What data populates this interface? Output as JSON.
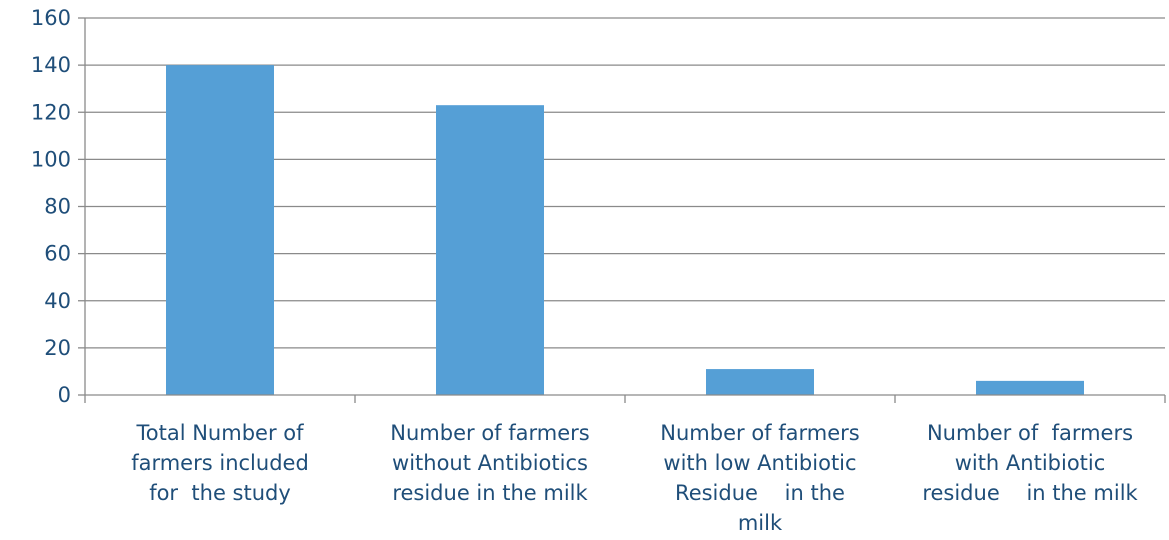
{
  "chart_data": {
    "type": "bar",
    "title": "",
    "xlabel": "",
    "ylabel": "",
    "ylim": [
      0,
      160
    ],
    "yticks": [
      0,
      20,
      40,
      60,
      80,
      100,
      120,
      140,
      160
    ],
    "grid": true,
    "legend": "none",
    "categories": [
      [
        "Total Number of",
        "farmers included",
        "for  the study"
      ],
      [
        "Number of farmers",
        "without Antibiotics",
        "residue in the milk"
      ],
      [
        "Number of farmers",
        "with low Antibiotic",
        "Residue    in the",
        "milk"
      ],
      [
        "Number of  farmers",
        "with Antibiotic",
        "residue    in the milk"
      ]
    ],
    "values": [
      140,
      123,
      11,
      6
    ],
    "colors": {
      "bar": "#559fd6",
      "axis_text": "#1f4e79",
      "grid": "#8a8a8a"
    }
  }
}
